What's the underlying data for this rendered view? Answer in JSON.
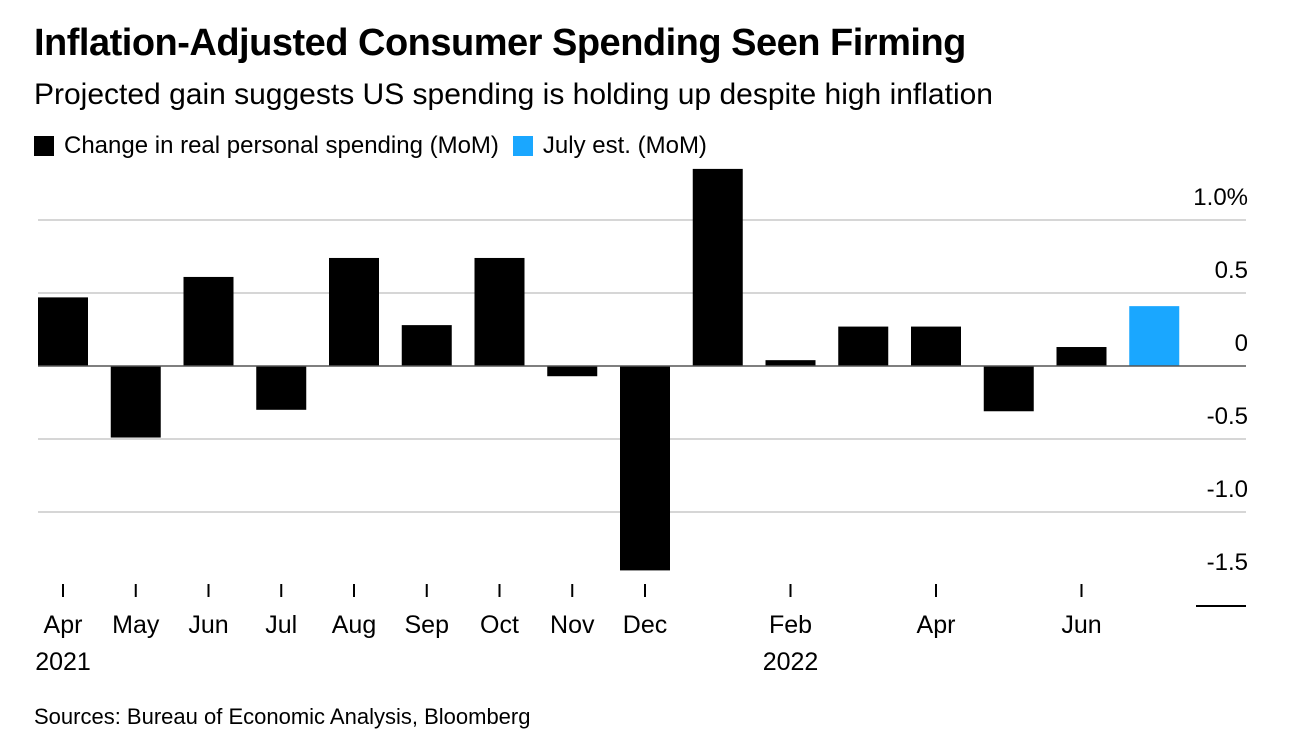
{
  "header": {
    "title": "Inflation-Adjusted Consumer Spending Seen Firming",
    "subtitle": "Projected gain suggests US spending is holding up despite high inflation"
  },
  "legend": [
    {
      "label": "Change in real personal spending (MoM)",
      "color": "#000000"
    },
    {
      "label": "July est. (MoM)",
      "color": "#1aa7ff"
    }
  ],
  "footer": {
    "source": "Sources: Bureau of Economic Analysis, Bloomberg"
  },
  "chart_data": {
    "type": "bar",
    "categories": [
      "Apr 2021",
      "May 2021",
      "Jun 2021",
      "Jul 2021",
      "Aug 2021",
      "Sep 2021",
      "Oct 2021",
      "Nov 2021",
      "Dec 2021",
      "Jan 2022",
      "Feb 2022",
      "Mar 2022",
      "Apr 2022",
      "May 2022",
      "Jun 2022",
      "Jul 2022"
    ],
    "series": [
      {
        "name": "Change in real personal spending (MoM)",
        "color": "#000000",
        "values": [
          0.47,
          -0.49,
          0.61,
          -0.3,
          0.74,
          0.28,
          0.74,
          -0.07,
          -1.4,
          1.35,
          0.04,
          0.27,
          0.27,
          -0.31,
          0.13,
          null
        ]
      },
      {
        "name": "July est. (MoM)",
        "color": "#1aa7ff",
        "values": [
          null,
          null,
          null,
          null,
          null,
          null,
          null,
          null,
          null,
          null,
          null,
          null,
          null,
          null,
          null,
          0.41
        ]
      }
    ],
    "x_tick_labels": [
      {
        "index": 0,
        "month": "Apr",
        "year": "2021"
      },
      {
        "index": 1,
        "month": "May"
      },
      {
        "index": 2,
        "month": "Jun"
      },
      {
        "index": 3,
        "month": "Jul"
      },
      {
        "index": 4,
        "month": "Aug"
      },
      {
        "index": 5,
        "month": "Sep"
      },
      {
        "index": 6,
        "month": "Oct"
      },
      {
        "index": 7,
        "month": "Nov"
      },
      {
        "index": 8,
        "month": "Dec"
      },
      {
        "index": 10,
        "month": "Feb",
        "year": "2022"
      },
      {
        "index": 12,
        "month": "Apr"
      },
      {
        "index": 14,
        "month": "Jun"
      }
    ],
    "y_ticks": [
      {
        "value": 1.0,
        "label": "1.0%"
      },
      {
        "value": 0.5,
        "label": "0.5"
      },
      {
        "value": 0,
        "label": "0"
      },
      {
        "value": -0.5,
        "label": "-0.5"
      },
      {
        "value": -1.0,
        "label": "-1.0"
      },
      {
        "value": -1.5,
        "label": "-1.5"
      }
    ],
    "ylim": [
      -1.5,
      1.35
    ],
    "grid": true,
    "y_axis_position": "right",
    "legend_position": "top-left"
  }
}
